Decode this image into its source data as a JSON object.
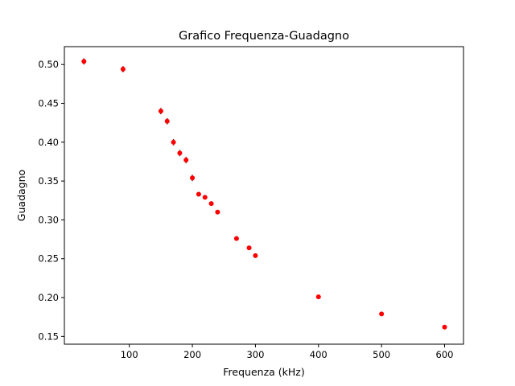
{
  "chart_data": {
    "type": "scatter",
    "title": "Grafico Frequenza-Guadagno",
    "xlabel": "Frequenza (kHz)",
    "ylabel": "Guadagno",
    "xlim": [
      -3,
      630
    ],
    "ylim": [
      0.14,
      0.523
    ],
    "xticks": [
      100,
      200,
      300,
      400,
      500,
      600
    ],
    "yticks": [
      0.15,
      0.2,
      0.25,
      0.3,
      0.35,
      0.4,
      0.45,
      0.5
    ],
    "ytick_labels": [
      "0.15",
      "0.20",
      "0.25",
      "0.30",
      "0.35",
      "0.40",
      "0.45",
      "0.50"
    ],
    "grid": false,
    "marker_color": "#ff0000",
    "errorbar_color": "#8b1a1a",
    "points": [
      {
        "x": 28,
        "y": 0.504,
        "yerr": 0.004
      },
      {
        "x": 90,
        "y": 0.494,
        "yerr": 0.004
      },
      {
        "x": 150,
        "y": 0.44,
        "yerr": 0.004
      },
      {
        "x": 160,
        "y": 0.427,
        "yerr": 0.004
      },
      {
        "x": 170,
        "y": 0.4,
        "yerr": 0.004
      },
      {
        "x": 180,
        "y": 0.386,
        "yerr": 0.004
      },
      {
        "x": 190,
        "y": 0.377,
        "yerr": 0.004
      },
      {
        "x": 200,
        "y": 0.354,
        "yerr": 0.004
      },
      {
        "x": 210,
        "y": 0.333,
        "yerr": 0.002
      },
      {
        "x": 220,
        "y": 0.329,
        "yerr": 0.002
      },
      {
        "x": 230,
        "y": 0.321,
        "yerr": 0.002
      },
      {
        "x": 240,
        "y": 0.31,
        "yerr": 0.002
      },
      {
        "x": 270,
        "y": 0.276,
        "yerr": 0.002
      },
      {
        "x": 290,
        "y": 0.264,
        "yerr": 0.002
      },
      {
        "x": 300,
        "y": 0.254,
        "yerr": 0.002
      },
      {
        "x": 400,
        "y": 0.201,
        "yerr": 0.001
      },
      {
        "x": 500,
        "y": 0.179,
        "yerr": 0.001
      },
      {
        "x": 600,
        "y": 0.162,
        "yerr": 0.001
      }
    ]
  }
}
